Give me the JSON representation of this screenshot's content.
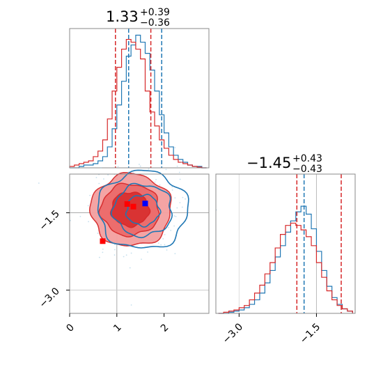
{
  "chart_data": {
    "type": "corner",
    "parameters": [
      {
        "title_value": "1.33",
        "title_plus": "+0.39",
        "title_minus": "−0.36",
        "lim": [
          0.0,
          2.95
        ]
      },
      {
        "title_value": "−1.45",
        "title_plus": "+0.43",
        "title_minus": "−0.43",
        "lim": [
          -3.45,
          -0.75
        ]
      }
    ],
    "ticks": {
      "x0": [
        {
          "v": 0,
          "label": "0"
        },
        {
          "v": 1,
          "label": "1"
        },
        {
          "v": 2,
          "label": "2"
        }
      ],
      "y1": [
        {
          "v": -3.0,
          "label": "−3.0"
        },
        {
          "v": -1.5,
          "label": "−1.5"
        }
      ],
      "x1": [
        {
          "v": -3.0,
          "label": "−3.0"
        },
        {
          "v": -1.5,
          "label": "−1.5"
        }
      ]
    },
    "colors": {
      "red": "#d62728",
      "blue": "#1f77b4",
      "truth": "#808080",
      "fill": "#f4a0a0",
      "fill_dark": "#e23a3a"
    },
    "truth": [
      1.0,
      -1.5
    ],
    "quantiles": {
      "blue_p0": [
        1.25,
        1.95
      ],
      "red_p0": [
        0.97,
        1.72
      ],
      "blue_p1": [
        -1.74,
        -1.02
      ],
      "red_p1": [
        -1.88,
        -1.02
      ]
    },
    "hist_p0": {
      "bins": [
        0.05,
        0.15,
        0.25,
        0.35,
        0.45,
        0.55,
        0.65,
        0.75,
        0.85,
        0.95,
        1.05,
        1.15,
        1.25,
        1.35,
        1.45,
        1.55,
        1.65,
        1.75,
        1.85,
        1.95,
        2.05,
        2.15,
        2.25,
        2.35,
        2.45,
        2.55,
        2.65,
        2.75,
        2.85
      ],
      "red": [
        0.01,
        0.02,
        0.03,
        0.04,
        0.05,
        0.08,
        0.12,
        0.2,
        0.35,
        0.55,
        0.72,
        0.85,
        0.92,
        0.9,
        0.85,
        0.78,
        0.55,
        0.4,
        0.3,
        0.2,
        0.14,
        0.09,
        0.06,
        0.04,
        0.03,
        0.02,
        0.01,
        0.005,
        0.0
      ],
      "blue": [
        0.0,
        0.0,
        0.01,
        0.02,
        0.02,
        0.03,
        0.05,
        0.08,
        0.15,
        0.28,
        0.45,
        0.62,
        0.8,
        0.88,
        0.95,
        0.9,
        0.82,
        0.7,
        0.55,
        0.38,
        0.25,
        0.15,
        0.09,
        0.06,
        0.04,
        0.02,
        0.01,
        0.01,
        0.0
      ]
    },
    "hist_p1": {
      "bins": [
        -3.35,
        -3.25,
        -3.15,
        -3.05,
        -2.95,
        -2.85,
        -2.75,
        -2.65,
        -2.55,
        -2.45,
        -2.35,
        -2.25,
        -2.15,
        -2.05,
        -1.95,
        -1.85,
        -1.75,
        -1.65,
        -1.55,
        -1.45,
        -1.35,
        -1.25,
        -1.15,
        -1.05,
        -0.95,
        -0.85
      ],
      "red": [
        0.0,
        0.01,
        0.02,
        0.03,
        0.05,
        0.07,
        0.12,
        0.18,
        0.25,
        0.35,
        0.45,
        0.58,
        0.7,
        0.78,
        0.8,
        0.78,
        0.74,
        0.68,
        0.6,
        0.45,
        0.32,
        0.2,
        0.12,
        0.07,
        0.04,
        0.02
      ],
      "blue": [
        0.0,
        0.0,
        0.01,
        0.02,
        0.03,
        0.05,
        0.08,
        0.12,
        0.18,
        0.27,
        0.38,
        0.5,
        0.6,
        0.72,
        0.82,
        0.9,
        0.95,
        0.88,
        0.75,
        0.55,
        0.38,
        0.24,
        0.14,
        0.08,
        0.04,
        0.02
      ]
    },
    "contours_red": [
      {
        "cx": 1.3,
        "cy": -1.45,
        "rx": 0.85,
        "ry": 0.7
      },
      {
        "cx": 1.28,
        "cy": -1.44,
        "rx": 0.62,
        "ry": 0.5
      },
      {
        "cx": 1.28,
        "cy": -1.43,
        "rx": 0.4,
        "ry": 0.33
      }
    ],
    "contours_blue": [
      {
        "cx": 1.55,
        "cy": -1.45,
        "rx": 0.95,
        "ry": 0.75
      },
      {
        "cx": 1.55,
        "cy": -1.45,
        "rx": 0.62,
        "ry": 0.5
      },
      {
        "cx": 1.55,
        "cy": -1.45,
        "rx": 0.35,
        "ry": 0.3
      }
    ],
    "markers": [
      {
        "x": 1.22,
        "y": -1.33,
        "color": "#ff0000"
      },
      {
        "x": 1.35,
        "y": -1.38,
        "color": "#ff0000"
      },
      {
        "x": 0.7,
        "y": -2.05,
        "color": "#ff0000"
      },
      {
        "x": 1.6,
        "y": -1.32,
        "color": "#0000ff"
      }
    ]
  }
}
